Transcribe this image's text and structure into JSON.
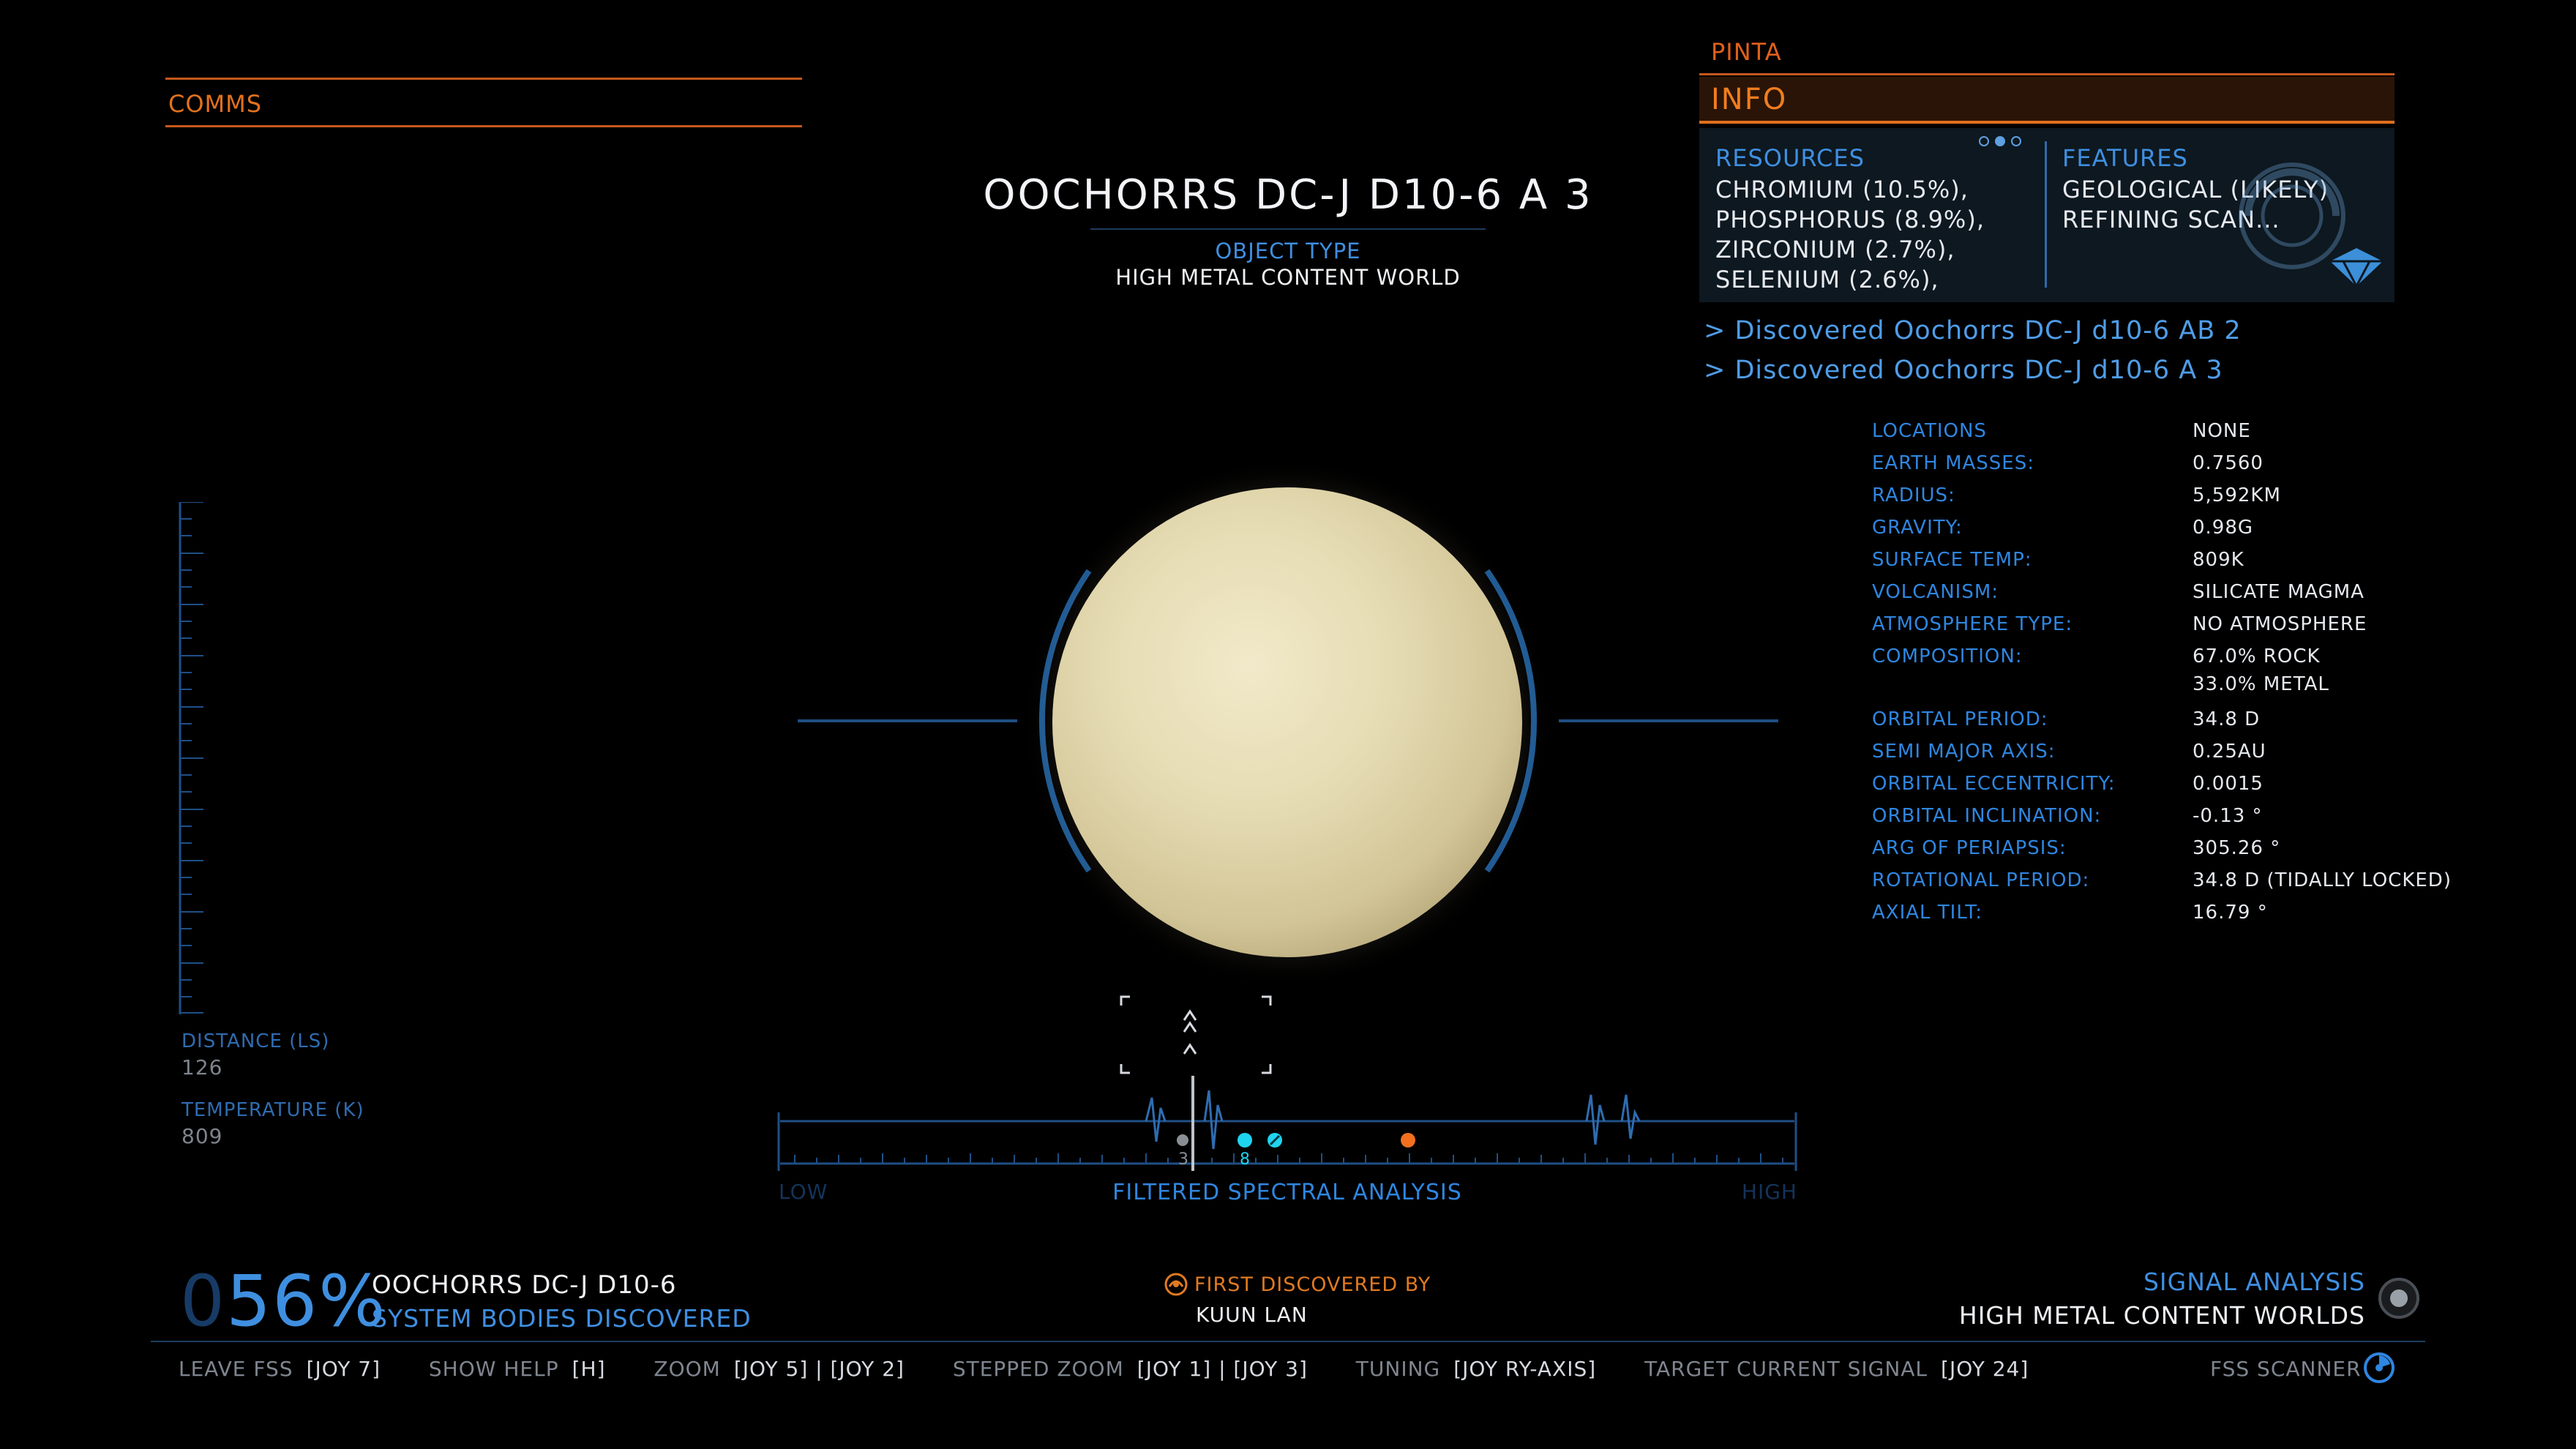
{
  "comms": {
    "label": "COMMS"
  },
  "right_panel": {
    "system_tag": "PINTA",
    "info_label": "INFO",
    "resources": {
      "title": "RESOURCES",
      "items": [
        "CHROMIUM (10.5%),",
        "PHOSPHORUS (8.9%),",
        "ZIRCONIUM (2.7%),",
        "SELENIUM (2.6%),"
      ]
    },
    "features": {
      "title": "FEATURES",
      "items": [
        "GEOLOGICAL (LIKELY)",
        "REFINING SCAN..."
      ]
    },
    "discoveries": [
      "> Discovered Oochorrs DC-J d10-6 AB 2",
      "> Discovered Oochorrs DC-J d10-6 A 3"
    ],
    "stats": [
      {
        "label": "LOCATIONS",
        "value": "NONE"
      },
      {
        "label": "EARTH MASSES:",
        "value": "0.7560"
      },
      {
        "label": "RADIUS:",
        "value": "5,592KM"
      },
      {
        "label": "GRAVITY:",
        "value": "0.98G"
      },
      {
        "label": "SURFACE TEMP:",
        "value": "809K"
      },
      {
        "label": "VOLCANISM:",
        "value": "SILICATE MAGMA"
      },
      {
        "label": "ATMOSPHERE TYPE:",
        "value": "NO ATMOSPHERE"
      },
      {
        "label": "COMPOSITION:",
        "value": "67.0% ROCK"
      },
      {
        "label": "",
        "value": "33.0% METAL"
      },
      {
        "label": "ORBITAL PERIOD:",
        "value": "34.8 D"
      },
      {
        "label": "SEMI MAJOR AXIS:",
        "value": "0.25AU"
      },
      {
        "label": "ORBITAL ECCENTRICITY:",
        "value": "0.0015"
      },
      {
        "label": "ORBITAL INCLINATION:",
        "value": "-0.13 °"
      },
      {
        "label": "ARG OF PERIAPSIS:",
        "value": "305.26 °"
      },
      {
        "label": "ROTATIONAL PERIOD:",
        "value": "34.8 D (TIDALLY LOCKED)"
      },
      {
        "label": "AXIAL TILT:",
        "value": "16.79 °"
      }
    ]
  },
  "body": {
    "title": "OOCHORRS DC-J D10-6 A 3",
    "object_type_label": "OBJECT TYPE",
    "object_type_value": "HIGH METAL CONTENT WORLD"
  },
  "gauge": {
    "distance_label": "DISTANCE (LS)",
    "distance_value": "126",
    "temperature_label": "TEMPERATURE (K)",
    "temperature_value": "809"
  },
  "spectral": {
    "low_label": "LOW",
    "high_label": "HIGH",
    "title": "FILTERED SPECTRAL ANALYSIS",
    "marker_counts": [
      "3",
      "8"
    ]
  },
  "status": {
    "percent_dim": "0",
    "percent": "56%",
    "system_name": "OOCHORRS DC-J D10-6",
    "system_sub": "SYSTEM BODIES DISCOVERED",
    "first_discovered_label": "FIRST DISCOVERED BY",
    "first_discovered_name": "KUUN LAN",
    "signal_title": "SIGNAL ANALYSIS",
    "signal_value": "HIGH METAL CONTENT WORLDS"
  },
  "controls": [
    {
      "key": "LEAVE FSS",
      "value": "[JOY 7]"
    },
    {
      "key": "SHOW HELP",
      "value": "[H]"
    },
    {
      "key": "ZOOM",
      "value": "[JOY 5] | [JOY 2]"
    },
    {
      "key": "STEPPED ZOOM",
      "value": "[JOY 1] | [JOY 3]"
    },
    {
      "key": "TUNING",
      "value": "[JOY RY-AXIS]"
    },
    {
      "key": "TARGET CURRENT SIGNAL",
      "value": "[JOY 24]"
    }
  ],
  "fss_label": "FSS SCANNER",
  "colors": {
    "accent_blue": "#3f8fe0",
    "accent_orange": "#f07d1f"
  }
}
